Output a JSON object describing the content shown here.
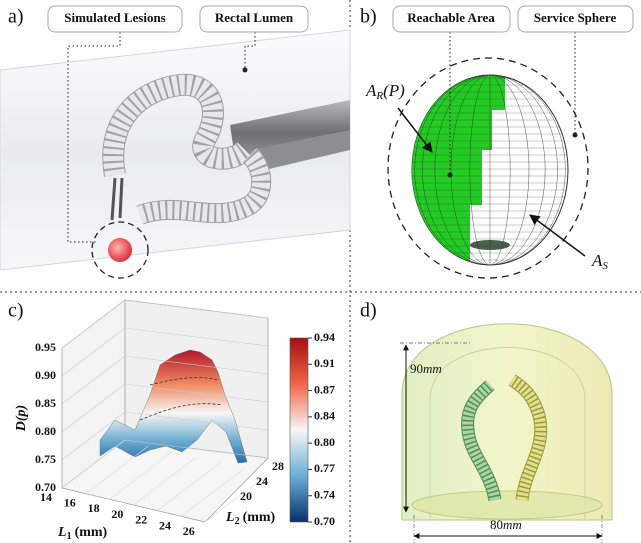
{
  "panels": [
    {
      "label": "a)",
      "callouts": [
        "Simulated Lesions",
        "Rectal Lumen"
      ]
    },
    {
      "label": "b)",
      "callouts": [
        "Reachable Area",
        "Service Sphere"
      ],
      "symbols": [
        {
          "base": "A",
          "subscript": "R",
          "suffix": "(P)"
        },
        {
          "base": "A",
          "subscript": "S"
        }
      ]
    },
    {
      "label": "c)",
      "z_axis_label": "D(p)",
      "z_ticks": [
        "0.95",
        "0.90",
        "0.85",
        "0.80",
        "0.75",
        "0.70"
      ],
      "x_axis_label": {
        "base": "L",
        "subscript": "1",
        "unit": "(mm)"
      },
      "x_ticks": [
        "14",
        "16",
        "18",
        "20",
        "22",
        "24",
        "26"
      ],
      "y_axis_label": {
        "base": "L",
        "subscript": "2",
        "unit": "(mm)"
      },
      "y_ticks": [
        "20",
        "24",
        "28"
      ],
      "colorbar_ticks": [
        "0.94",
        "0.91",
        "0.87",
        "0.84",
        "0.80",
        "0.77",
        "0.74",
        "0.70"
      ]
    },
    {
      "label": "d)",
      "dimensions": [
        {
          "number": "90",
          "unit": "mm"
        },
        {
          "number": "80",
          "unit": "mm"
        }
      ]
    }
  ]
}
